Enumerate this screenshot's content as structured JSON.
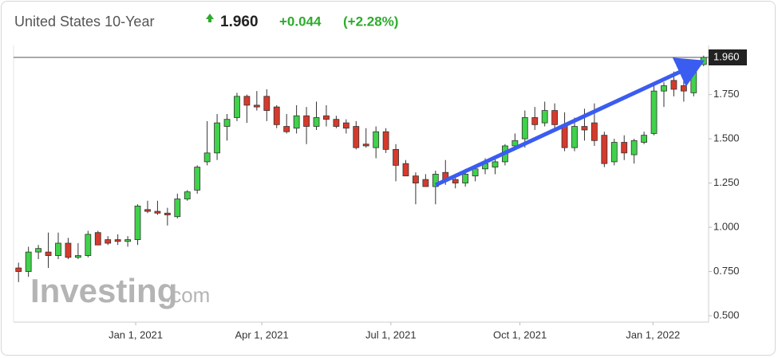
{
  "header": {
    "title": "United States 10-Year",
    "price": "1.960",
    "change": "+0.044",
    "change_percent": "(+2.28%)"
  },
  "chart_data": {
    "type": "candlestick",
    "categories": [
      null,
      null,
      null,
      null,
      null,
      null,
      null,
      null,
      null,
      null,
      null,
      null,
      null,
      null,
      null,
      null,
      null,
      null,
      null,
      null,
      null,
      null,
      null,
      null,
      null,
      null,
      null,
      null,
      null,
      null,
      null,
      null,
      null,
      null,
      null,
      null,
      null,
      null,
      null,
      null,
      null,
      null,
      null,
      null,
      null,
      null,
      null,
      null,
      null,
      null,
      null,
      null,
      null,
      null,
      null,
      null,
      null,
      null,
      null,
      null,
      null,
      null,
      null,
      null,
      null,
      null,
      null,
      null,
      null,
      null
    ],
    "open": [
      0.77,
      0.75,
      0.86,
      0.86,
      0.84,
      0.91,
      0.83,
      0.84,
      0.97,
      0.93,
      0.93,
      0.92,
      0.93,
      1.1,
      1.09,
      1.08,
      1.06,
      1.16,
      1.21,
      1.37,
      1.42,
      1.57,
      1.62,
      1.74,
      1.69,
      1.74,
      1.68,
      1.57,
      1.56,
      1.63,
      1.57,
      1.63,
      1.61,
      1.59,
      1.57,
      1.47,
      1.45,
      1.54,
      1.44,
      1.36,
      1.29,
      1.27,
      1.23,
      1.31,
      1.27,
      1.25,
      1.29,
      1.33,
      1.34,
      1.37,
      1.46,
      1.5,
      1.62,
      1.59,
      1.66,
      1.58,
      1.45,
      1.57,
      1.59,
      1.52,
      1.37,
      1.48,
      1.41,
      1.48,
      1.53,
      1.77,
      1.83,
      1.8,
      1.76,
      1.92
    ],
    "high": [
      0.8,
      0.89,
      0.9,
      0.97,
      0.97,
      0.94,
      0.91,
      0.98,
      0.98,
      0.95,
      0.96,
      0.95,
      1.13,
      1.15,
      1.15,
      1.11,
      1.19,
      1.21,
      1.35,
      1.6,
      1.64,
      1.64,
      1.76,
      1.75,
      1.77,
      1.78,
      1.69,
      1.64,
      1.69,
      1.68,
      1.71,
      1.69,
      1.63,
      1.61,
      1.6,
      1.56,
      1.57,
      1.56,
      1.47,
      1.38,
      1.31,
      1.3,
      1.32,
      1.38,
      1.29,
      1.33,
      1.35,
      1.39,
      1.4,
      1.47,
      1.53,
      1.66,
      1.68,
      1.71,
      1.7,
      1.65,
      1.62,
      1.67,
      1.7,
      1.54,
      1.5,
      1.52,
      1.5,
      1.54,
      1.8,
      1.82,
      1.88,
      1.83,
      1.91,
      1.97
    ],
    "low": [
      0.69,
      0.72,
      0.82,
      0.77,
      0.82,
      0.82,
      0.82,
      0.83,
      0.9,
      0.9,
      0.9,
      0.89,
      0.9,
      1.08,
      1.07,
      1.01,
      1.05,
      1.15,
      1.19,
      1.35,
      1.38,
      1.49,
      1.6,
      1.59,
      1.66,
      1.6,
      1.56,
      1.53,
      1.53,
      1.47,
      1.55,
      1.57,
      1.56,
      1.53,
      1.44,
      1.45,
      1.39,
      1.42,
      1.26,
      1.29,
      1.13,
      1.23,
      1.13,
      1.24,
      1.22,
      1.23,
      1.26,
      1.3,
      1.3,
      1.35,
      1.44,
      1.45,
      1.55,
      1.57,
      1.56,
      1.43,
      1.43,
      1.49,
      1.46,
      1.34,
      1.35,
      1.38,
      1.36,
      1.47,
      1.52,
      1.68,
      1.74,
      1.71,
      1.74,
      1.91
    ],
    "close": [
      0.75,
      0.86,
      0.88,
      0.84,
      0.91,
      0.83,
      0.84,
      0.96,
      0.9,
      0.91,
      0.92,
      0.93,
      1.12,
      1.09,
      1.08,
      1.07,
      1.16,
      1.2,
      1.34,
      1.42,
      1.59,
      1.61,
      1.74,
      1.69,
      1.68,
      1.66,
      1.58,
      1.54,
      1.63,
      1.57,
      1.62,
      1.61,
      1.57,
      1.56,
      1.45,
      1.46,
      1.54,
      1.44,
      1.35,
      1.29,
      1.25,
      1.23,
      1.3,
      1.27,
      1.25,
      1.3,
      1.33,
      1.36,
      1.37,
      1.46,
      1.49,
      1.62,
      1.58,
      1.66,
      1.58,
      1.45,
      1.57,
      1.55,
      1.49,
      1.36,
      1.48,
      1.42,
      1.49,
      1.52,
      1.77,
      1.8,
      1.78,
      1.77,
      1.89,
      1.96
    ],
    "up_color": "#3fd24a",
    "down_color": "#d63a2c",
    "xlim": [
      -0.5,
      69.5
    ],
    "xticks": [
      {
        "value": 11.8,
        "label": "Jan 1, 2021"
      },
      {
        "value": 24.5,
        "label": "Apr 1, 2021"
      },
      {
        "value": 37.5,
        "label": "Jul 1, 2021"
      },
      {
        "value": 50.5,
        "label": "Oct 1, 2021"
      },
      {
        "value": 63.9,
        "label": "Jan 1, 2022"
      }
    ],
    "ylim": [
      0.5,
      1.96
    ],
    "yticks": [
      {
        "value": 0.5,
        "label": "0.500"
      },
      {
        "value": 0.75,
        "label": "0.750"
      },
      {
        "value": 1,
        "label": "1.000"
      },
      {
        "value": 1.25,
        "label": "1.250"
      },
      {
        "value": 1.5,
        "label": "1.500"
      },
      {
        "value": 1.75,
        "label": "1.750"
      }
    ],
    "last_price": {
      "value": 1.96,
      "label": "1.960"
    },
    "watermark": "Investing",
    "watermark_suffix": ".com"
  }
}
